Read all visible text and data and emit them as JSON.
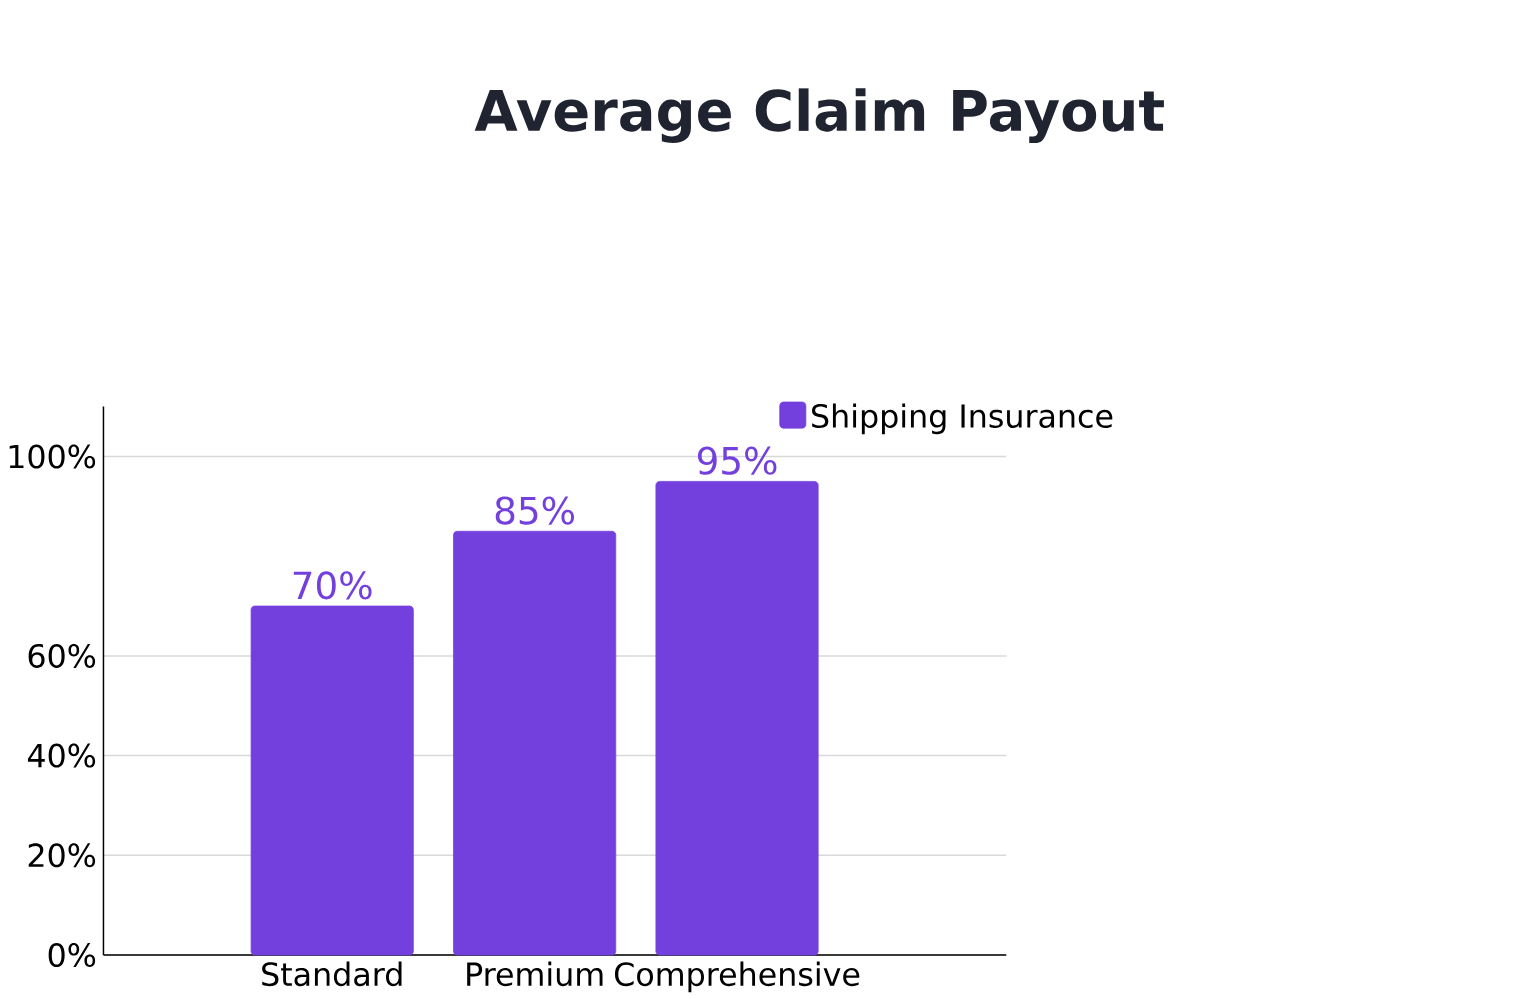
{
  "chart_data": {
    "type": "bar",
    "title": "Average Claim Payout",
    "categories": [
      "Standard",
      "Premium",
      "Comprehensive"
    ],
    "series": [
      {
        "name": "Shipping Insurance",
        "color": "#7340dd",
        "values": [
          70,
          85,
          95
        ],
        "value_labels": [
          "70%",
          "85%",
          "95%"
        ]
      }
    ],
    "ylim": [
      0,
      110
    ],
    "yticks": [
      {
        "value": 0,
        "label": "0%"
      },
      {
        "value": 20,
        "label": "20%"
      },
      {
        "value": 40,
        "label": "40%"
      },
      {
        "value": 60,
        "label": "60%"
      },
      {
        "value": 100,
        "label": "100%"
      }
    ],
    "grid": "y",
    "legend": "top right"
  }
}
